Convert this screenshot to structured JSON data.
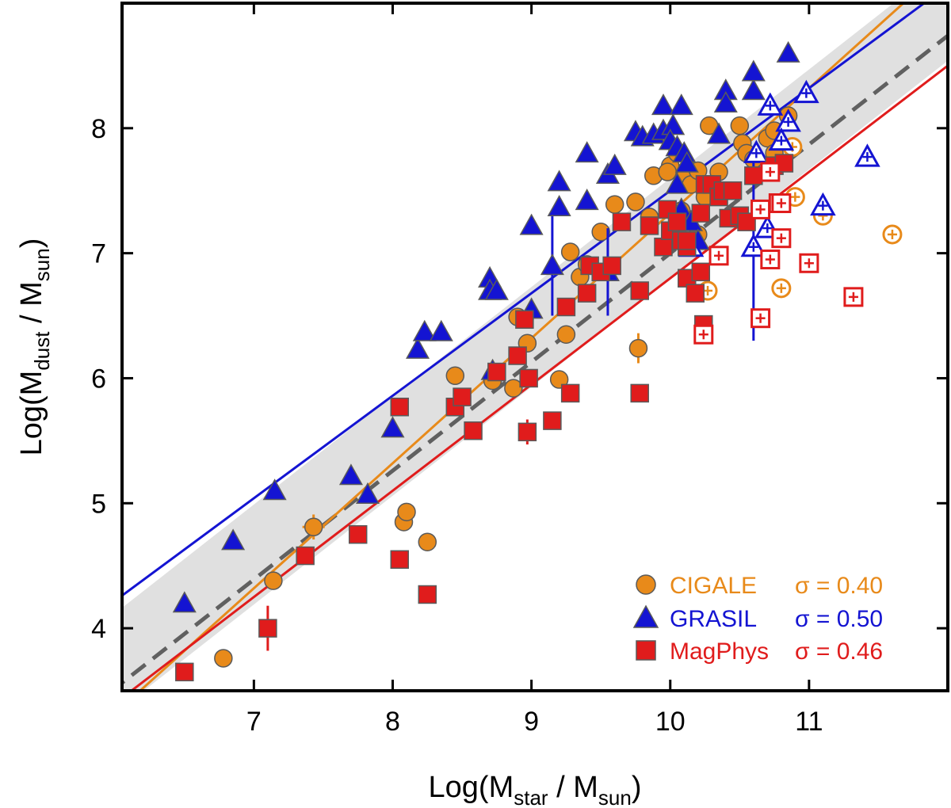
{
  "chart_data": {
    "type": "scatter",
    "xlabel": {
      "main": "Log(M",
      "sub": "star",
      "mid": " / M",
      "sub2": "sun",
      "end": ")"
    },
    "ylabel": {
      "main": "Log(M",
      "sub": "dust",
      "mid": " / M",
      "sub2": "sun",
      "end": ")"
    },
    "xlim": [
      6.05,
      12.0
    ],
    "ylim": [
      3.5,
      9.0
    ],
    "xticks": [
      7,
      8,
      9,
      10,
      11
    ],
    "yticks": [
      4,
      5,
      6,
      7,
      8
    ],
    "band": {
      "color": "#e0e0e0",
      "description": "reference relation 1-sigma band",
      "slope": 0.87,
      "intercept": -1.5,
      "halfwidth": 0.4
    },
    "reference_line": {
      "slope": 0.87,
      "intercept": -1.7,
      "color": "#606060",
      "style": "dashed"
    },
    "fits": [
      {
        "name": "CIGALE",
        "slope": 1.0,
        "intercept": -2.68,
        "color": "#e88a1a"
      },
      {
        "name": "GRASIL",
        "slope": 0.82,
        "intercept": -0.7,
        "color": "#1414d2"
      },
      {
        "name": "MagPhys",
        "slope": 0.85,
        "intercept": -1.7,
        "color": "#e01c1c"
      }
    ],
    "legend": [
      {
        "name": "CIGALE",
        "marker": "circle",
        "color": "#e88a1a",
        "sigma": "σ = 0.40"
      },
      {
        "name": "GRASIL",
        "marker": "triangle",
        "color": "#1414d2",
        "sigma": "σ = 0.50"
      },
      {
        "name": "MagPhys",
        "marker": "square",
        "color": "#e01c1c",
        "sigma": "σ = 0.46"
      }
    ],
    "series": [
      {
        "name": "CIGALE",
        "marker": "circle",
        "color": "#e88a1a",
        "points": [
          [
            6.78,
            3.76
          ],
          [
            7.14,
            4.38
          ],
          [
            7.43,
            4.81
          ],
          [
            8.08,
            4.85
          ],
          [
            8.1,
            4.93
          ],
          [
            8.25,
            4.69
          ],
          [
            8.45,
            6.02
          ],
          [
            8.72,
            5.98
          ],
          [
            8.87,
            5.92
          ],
          [
            8.97,
            6.28
          ],
          [
            8.95,
            6.47
          ],
          [
            8.9,
            6.49
          ],
          [
            9.25,
            6.35
          ],
          [
            9.2,
            5.99
          ],
          [
            9.28,
            7.01
          ],
          [
            9.35,
            6.81
          ],
          [
            9.4,
            6.91
          ],
          [
            9.5,
            7.17
          ],
          [
            9.6,
            7.39
          ],
          [
            9.75,
            7.41
          ],
          [
            9.85,
            7.29
          ],
          [
            9.88,
            7.62
          ],
          [
            10.0,
            7.7
          ],
          [
            10.05,
            7.8
          ],
          [
            10.1,
            7.6
          ],
          [
            10.15,
            7.55
          ],
          [
            10.2,
            7.66
          ],
          [
            10.25,
            7.45
          ],
          [
            10.28,
            8.02
          ],
          [
            10.35,
            7.65
          ],
          [
            10.5,
            8.02
          ],
          [
            10.52,
            7.88
          ],
          [
            10.55,
            7.8
          ],
          [
            10.7,
            7.92
          ],
          [
            10.75,
            7.98
          ],
          [
            10.85,
            8.1
          ],
          [
            10.75,
            7.8
          ],
          [
            10.6,
            7.75
          ],
          [
            9.98,
            7.65
          ],
          [
            10.08,
            7.34
          ],
          [
            10.15,
            7.05
          ],
          [
            10.2,
            7.15
          ],
          [
            9.77,
            6.24
          ]
        ],
        "errors": [
          [
            7.43,
            4.81,
            0.08,
            0.1
          ],
          [
            9.77,
            6.24,
            0.05,
            0.12
          ]
        ],
        "open": [
          [
            10.27,
            6.7
          ],
          [
            10.8,
            6.72
          ],
          [
            10.9,
            7.45
          ],
          [
            11.1,
            7.3
          ],
          [
            11.6,
            7.15
          ],
          [
            10.88,
            7.85
          ]
        ]
      },
      {
        "name": "GRASIL",
        "marker": "triangle",
        "color": "#1414d2",
        "points": [
          [
            6.5,
            4.2
          ],
          [
            6.85,
            4.7
          ],
          [
            7.15,
            5.1
          ],
          [
            7.7,
            5.22
          ],
          [
            7.82,
            5.07
          ],
          [
            8.0,
            5.6
          ],
          [
            8.18,
            6.23
          ],
          [
            8.23,
            6.37
          ],
          [
            8.35,
            6.37
          ],
          [
            8.7,
            6.8
          ],
          [
            8.7,
            6.7
          ],
          [
            8.75,
            6.7
          ],
          [
            8.72,
            6.06
          ],
          [
            9.0,
            6.55
          ],
          [
            9.0,
            7.22
          ],
          [
            9.2,
            7.37
          ],
          [
            9.2,
            7.57
          ],
          [
            9.4,
            7.8
          ],
          [
            9.4,
            7.42
          ],
          [
            9.55,
            7.63
          ],
          [
            9.6,
            7.7
          ],
          [
            9.75,
            7.97
          ],
          [
            9.8,
            7.93
          ],
          [
            9.88,
            7.95
          ],
          [
            9.95,
            7.98
          ],
          [
            9.95,
            8.18
          ],
          [
            10.02,
            8.02
          ],
          [
            10.08,
            8.18
          ],
          [
            10.0,
            7.9
          ],
          [
            10.05,
            7.85
          ],
          [
            10.1,
            7.8
          ],
          [
            10.12,
            7.72
          ],
          [
            10.05,
            7.55
          ],
          [
            10.08,
            7.35
          ],
          [
            10.15,
            7.25
          ],
          [
            10.2,
            7.1
          ],
          [
            10.35,
            7.95
          ],
          [
            10.4,
            8.3
          ],
          [
            10.4,
            8.2
          ],
          [
            10.6,
            8.3
          ],
          [
            10.6,
            8.45
          ],
          [
            10.85,
            8.6
          ],
          [
            9.15,
            6.9
          ],
          [
            9.55,
            6.85
          ]
        ],
        "errors": [
          [
            9.15,
            6.9,
            0.0,
            0.4
          ],
          [
            9.55,
            6.85,
            0.0,
            0.35
          ],
          [
            10.6,
            7.05,
            0.0,
            0.75
          ]
        ],
        "open": [
          [
            10.6,
            7.05
          ],
          [
            10.7,
            7.2
          ],
          [
            10.62,
            7.8
          ],
          [
            10.72,
            8.18
          ],
          [
            10.85,
            8.05
          ],
          [
            10.8,
            7.9
          ],
          [
            10.98,
            8.28
          ],
          [
            11.1,
            7.38
          ],
          [
            11.42,
            7.77
          ],
          [
            10.15,
            7.05
          ]
        ]
      },
      {
        "name": "MagPhys",
        "marker": "square",
        "color": "#e01c1c",
        "points": [
          [
            6.5,
            3.65
          ],
          [
            7.1,
            4.0
          ],
          [
            7.37,
            4.58
          ],
          [
            7.75,
            4.75
          ],
          [
            8.05,
            4.55
          ],
          [
            8.05,
            5.77
          ],
          [
            8.25,
            4.27
          ],
          [
            8.45,
            5.77
          ],
          [
            8.5,
            5.85
          ],
          [
            8.58,
            5.58
          ],
          [
            8.75,
            6.05
          ],
          [
            8.9,
            6.18
          ],
          [
            8.97,
            5.57
          ],
          [
            8.98,
            6.0
          ],
          [
            8.95,
            6.47
          ],
          [
            9.15,
            5.66
          ],
          [
            9.25,
            6.57
          ],
          [
            9.28,
            5.88
          ],
          [
            9.4,
            6.68
          ],
          [
            9.42,
            6.9
          ],
          [
            9.5,
            6.85
          ],
          [
            9.58,
            6.9
          ],
          [
            9.65,
            7.25
          ],
          [
            9.78,
            6.7
          ],
          [
            9.78,
            5.88
          ],
          [
            9.85,
            7.22
          ],
          [
            9.95,
            7.05
          ],
          [
            9.98,
            7.35
          ],
          [
            10.0,
            7.18
          ],
          [
            10.05,
            7.25
          ],
          [
            10.08,
            7.1
          ],
          [
            10.12,
            7.05
          ],
          [
            10.12,
            7.1
          ],
          [
            10.12,
            6.8
          ],
          [
            10.18,
            6.68
          ],
          [
            10.22,
            7.32
          ],
          [
            10.25,
            7.55
          ],
          [
            10.3,
            7.55
          ],
          [
            10.35,
            7.45
          ],
          [
            10.38,
            7.5
          ],
          [
            10.42,
            7.28
          ],
          [
            10.45,
            7.5
          ],
          [
            10.5,
            7.3
          ],
          [
            10.55,
            7.25
          ],
          [
            10.6,
            7.62
          ],
          [
            10.75,
            7.7
          ],
          [
            10.82,
            7.72
          ],
          [
            10.22,
            6.85
          ],
          [
            10.24,
            6.43
          ]
        ],
        "errors": [
          [
            7.1,
            4.0,
            0.0,
            0.18
          ],
          [
            8.97,
            5.57,
            0.0,
            0.1
          ],
          [
            9.78,
            5.88,
            0.06,
            0.0
          ]
        ],
        "open": [
          [
            10.24,
            6.35
          ],
          [
            10.35,
            6.98
          ],
          [
            10.65,
            7.35
          ],
          [
            10.65,
            6.48
          ],
          [
            10.72,
            6.95
          ],
          [
            10.72,
            7.65
          ],
          [
            10.78,
            7.4
          ],
          [
            10.8,
            7.12
          ],
          [
            10.8,
            7.4
          ],
          [
            11.0,
            6.92
          ],
          [
            11.32,
            6.65
          ]
        ]
      }
    ]
  }
}
